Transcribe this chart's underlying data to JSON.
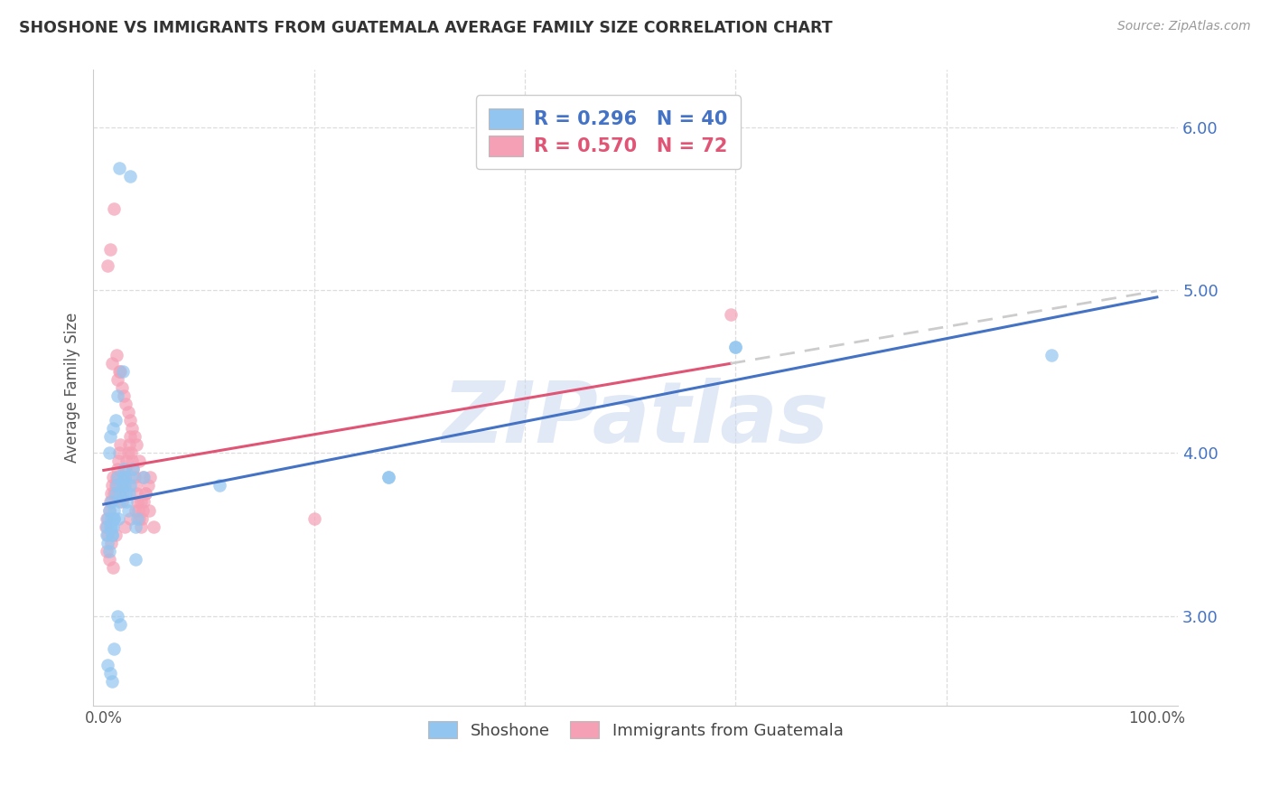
{
  "title": "SHOSHONE VS IMMIGRANTS FROM GUATEMALA AVERAGE FAMILY SIZE CORRELATION CHART",
  "source": "Source: ZipAtlas.com",
  "ylabel": "Average Family Size",
  "legend_label1": "Shoshone",
  "legend_label2": "Immigrants from Guatemala",
  "R1": 0.296,
  "N1": 40,
  "R2": 0.57,
  "N2": 72,
  "color1": "#92C5F0",
  "color2": "#F5A0B5",
  "line_color1": "#4472C4",
  "line_color2": "#E05575",
  "dash_color": "#CCCCCC",
  "background": "#FFFFFF",
  "grid_color": "#DDDDDD",
  "watermark": "ZIPatlas",
  "title_color": "#333333",
  "source_color": "#999999",
  "ylabel_color": "#555555",
  "tick_color_right": "#4472C4",
  "xlim": [
    -0.01,
    1.02
  ],
  "ylim": [
    2.45,
    6.35
  ],
  "shoshone_x": [
    0.003,
    0.004,
    0.005,
    0.005,
    0.006,
    0.007,
    0.007,
    0.008,
    0.009,
    0.01,
    0.01,
    0.011,
    0.012,
    0.013,
    0.014,
    0.015,
    0.016,
    0.017,
    0.018,
    0.019,
    0.02,
    0.021,
    0.022,
    0.023,
    0.024,
    0.025,
    0.026,
    0.028,
    0.03,
    0.032,
    0.004,
    0.006,
    0.008,
    0.01,
    0.013,
    0.016,
    0.038,
    0.27,
    0.6,
    0.9
  ],
  "shoshone_y": [
    3.55,
    3.6,
    4.0,
    3.65,
    4.1,
    3.7,
    3.55,
    3.5,
    4.15,
    3.6,
    3.65,
    3.75,
    3.8,
    3.85,
    3.6,
    3.7,
    3.75,
    3.8,
    3.85,
    3.9,
    3.8,
    3.75,
    3.7,
    3.65,
    3.75,
    3.8,
    3.85,
    3.9,
    3.55,
    3.6,
    2.7,
    2.65,
    2.6,
    2.8,
    3.0,
    2.95,
    3.85,
    3.85,
    4.65,
    4.6
  ],
  "shoshone_x2": [
    0.003,
    0.004,
    0.005,
    0.006,
    0.007,
    0.008,
    0.009,
    0.01,
    0.011,
    0.013,
    0.015,
    0.018,
    0.02,
    0.025,
    0.03,
    0.11,
    0.27,
    0.6
  ],
  "shoshone_y2": [
    3.5,
    3.45,
    3.4,
    3.55,
    3.6,
    3.5,
    3.55,
    3.6,
    4.2,
    4.35,
    5.75,
    4.5,
    3.85,
    5.7,
    3.35,
    3.8,
    3.85,
    4.65
  ],
  "guatemala_x": [
    0.002,
    0.003,
    0.004,
    0.005,
    0.006,
    0.007,
    0.008,
    0.009,
    0.01,
    0.011,
    0.012,
    0.013,
    0.014,
    0.015,
    0.016,
    0.017,
    0.018,
    0.019,
    0.02,
    0.021,
    0.022,
    0.023,
    0.024,
    0.025,
    0.026,
    0.027,
    0.028,
    0.029,
    0.03,
    0.031,
    0.032,
    0.033,
    0.034,
    0.035,
    0.036,
    0.037,
    0.038,
    0.04,
    0.042,
    0.044,
    0.003,
    0.005,
    0.007,
    0.009,
    0.011,
    0.013,
    0.015,
    0.017,
    0.019,
    0.021,
    0.023,
    0.025,
    0.027,
    0.029,
    0.031,
    0.034,
    0.037,
    0.04,
    0.043,
    0.047,
    0.004,
    0.006,
    0.008,
    0.01,
    0.012,
    0.016,
    0.02,
    0.025,
    0.03,
    0.035,
    0.2,
    0.595
  ],
  "guatemala_y": [
    3.55,
    3.6,
    3.5,
    3.65,
    3.7,
    3.75,
    3.8,
    3.85,
    3.75,
    3.8,
    3.85,
    3.9,
    3.95,
    4.0,
    4.05,
    3.7,
    3.75,
    3.8,
    3.85,
    3.9,
    3.95,
    4.0,
    4.05,
    4.1,
    4.0,
    3.95,
    3.9,
    3.85,
    3.8,
    3.75,
    3.7,
    3.65,
    3.6,
    3.55,
    3.6,
    3.65,
    3.7,
    3.75,
    3.8,
    3.85,
    3.4,
    3.35,
    3.45,
    3.3,
    3.5,
    4.45,
    4.5,
    4.4,
    4.35,
    4.3,
    4.25,
    4.2,
    4.15,
    4.1,
    4.05,
    3.95,
    3.85,
    3.75,
    3.65,
    3.55,
    5.15,
    5.25,
    4.55,
    5.5,
    4.6,
    4.5,
    3.55,
    3.6,
    3.65,
    3.7,
    3.6,
    4.85
  ]
}
